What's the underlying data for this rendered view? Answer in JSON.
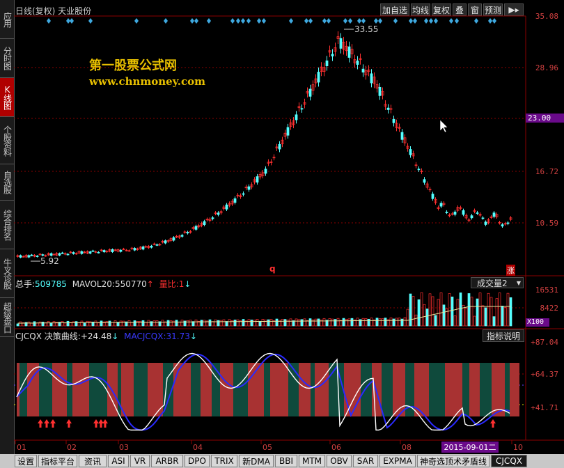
{
  "sidebar": {
    "items": [
      {
        "label": "应用"
      },
      {
        "label": "分时图"
      },
      {
        "label": "K线图"
      },
      {
        "label": "个股资料"
      },
      {
        "label": "自选股"
      },
      {
        "label": "综合排名"
      },
      {
        "label": "牛叉诊股"
      },
      {
        "label": "超级盘口"
      }
    ]
  },
  "header": {
    "title": "日线(复权) 天业股份",
    "buttons": [
      "加自选",
      "均线",
      "复权",
      "叠",
      "窗",
      "预测"
    ],
    "menu_icon": "flag-arrow-icon"
  },
  "watermark": {
    "line1": "第一股票公式网",
    "line2": "www.chnmoney.com"
  },
  "price_panel": {
    "axis_labels": [
      "35.08",
      "28.96",
      "16.72",
      "10.59"
    ],
    "highlight_label": "23.00",
    "high_marker": "33.55",
    "low_marker": "5.92",
    "q_mark": "q",
    "rise_badge": "涨"
  },
  "volume_panel": {
    "label_total": "总手:",
    "total_value": "509785",
    "label_mavol": "MAVOL20:",
    "mavol_value": "550770",
    "label_ratio": "量比:",
    "ratio_value": "1",
    "dropdown": "成交量2",
    "axis_labels": [
      "16531",
      "8422",
      "X100"
    ]
  },
  "indicator_panel": {
    "name": "CJCQX",
    "line_label": "决策曲线:",
    "line_value": "+24.48",
    "ma_label": "MACJCQX:",
    "ma_value": "31.73",
    "help_button": "指标说明",
    "axis_labels": [
      "+87.04",
      "+64.37",
      "+41.71"
    ]
  },
  "date_axis": {
    "months": [
      "01",
      "02",
      "03",
      "04",
      "05",
      "06",
      "08",
      "10"
    ],
    "cursor_date": "2015-09-01二"
  },
  "tabs": [
    "设置",
    "指标平台",
    "资讯",
    "ASI",
    "VR",
    "ARBR",
    "DPO",
    "TRIX",
    "新DMA",
    "BBI",
    "MTM",
    "OBV",
    "SAR",
    "EXPMA",
    "神奇选顶术矛盾线",
    "CJCQX"
  ],
  "active_tab": "CJCQX",
  "colors": {
    "up": "#ff3030",
    "down": "#54ffff",
    "axis_highlight": "#6a0a8a",
    "grid": "#8b0000"
  }
}
